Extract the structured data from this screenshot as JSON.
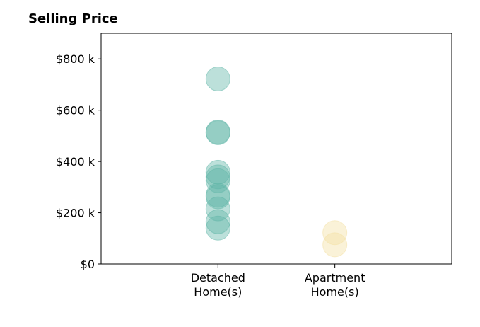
{
  "chart_data": {
    "type": "scatter",
    "title": "Selling Price",
    "categories": [
      "Detached\nHome(s)",
      "Apartment\nHome(s)"
    ],
    "xlim": [
      0,
      3
    ],
    "ylim": [
      0,
      900000
    ],
    "yticks": [
      0,
      200000,
      400000,
      600000,
      800000
    ],
    "ytick_labels": [
      "$0",
      "$200 k",
      "$400 k",
      "$600 k",
      "$800 k"
    ],
    "grid": false,
    "series": [
      {
        "category": "Detached\nHome(s)",
        "color": "#5fb5a8",
        "values": [
          722000,
          515000,
          512000,
          358000,
          340000,
          325000,
          268000,
          262000,
          215000,
          165000,
          140000
        ]
      },
      {
        "category": "Apartment\nHome(s)",
        "color": "#f3dfa2",
        "values": [
          122000,
          75000
        ]
      }
    ]
  }
}
